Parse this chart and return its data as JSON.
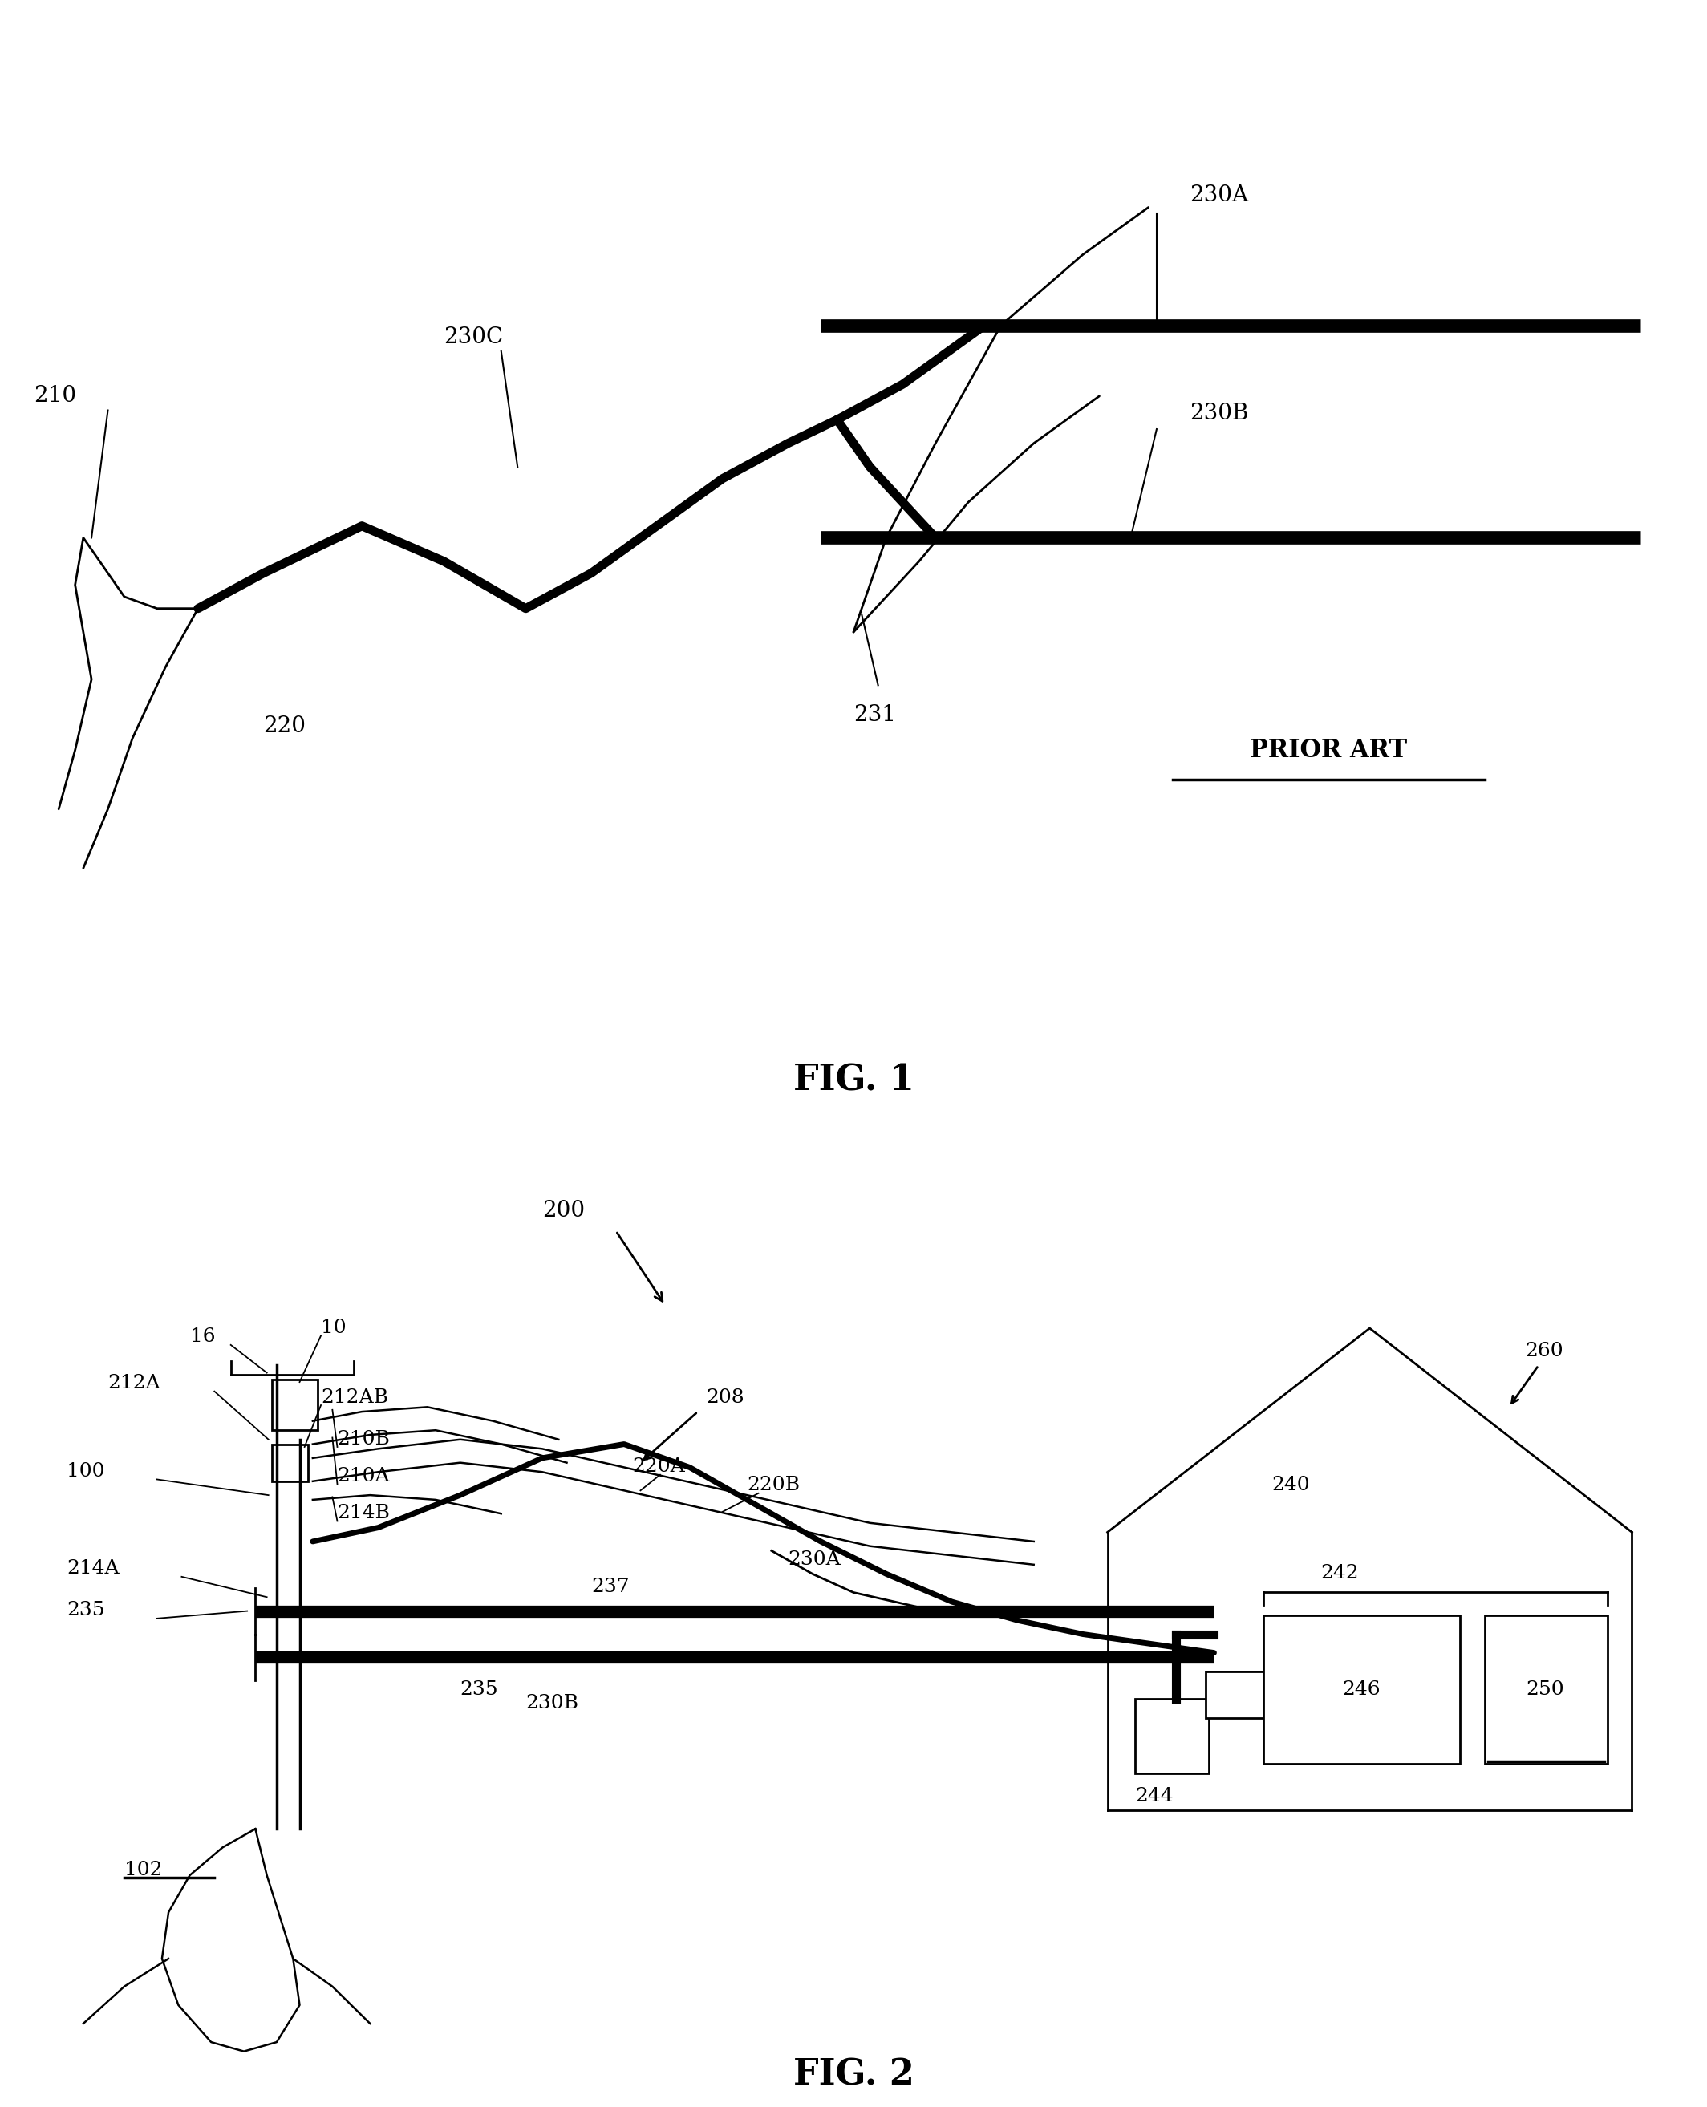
{
  "fig_width": 21.28,
  "fig_height": 26.27,
  "bg_color": "#ffffff",
  "line_color": "#000000",
  "fig1_title": "FIG. 1",
  "fig2_title": "FIG. 2",
  "prior_art_text": "PRIOR ART"
}
